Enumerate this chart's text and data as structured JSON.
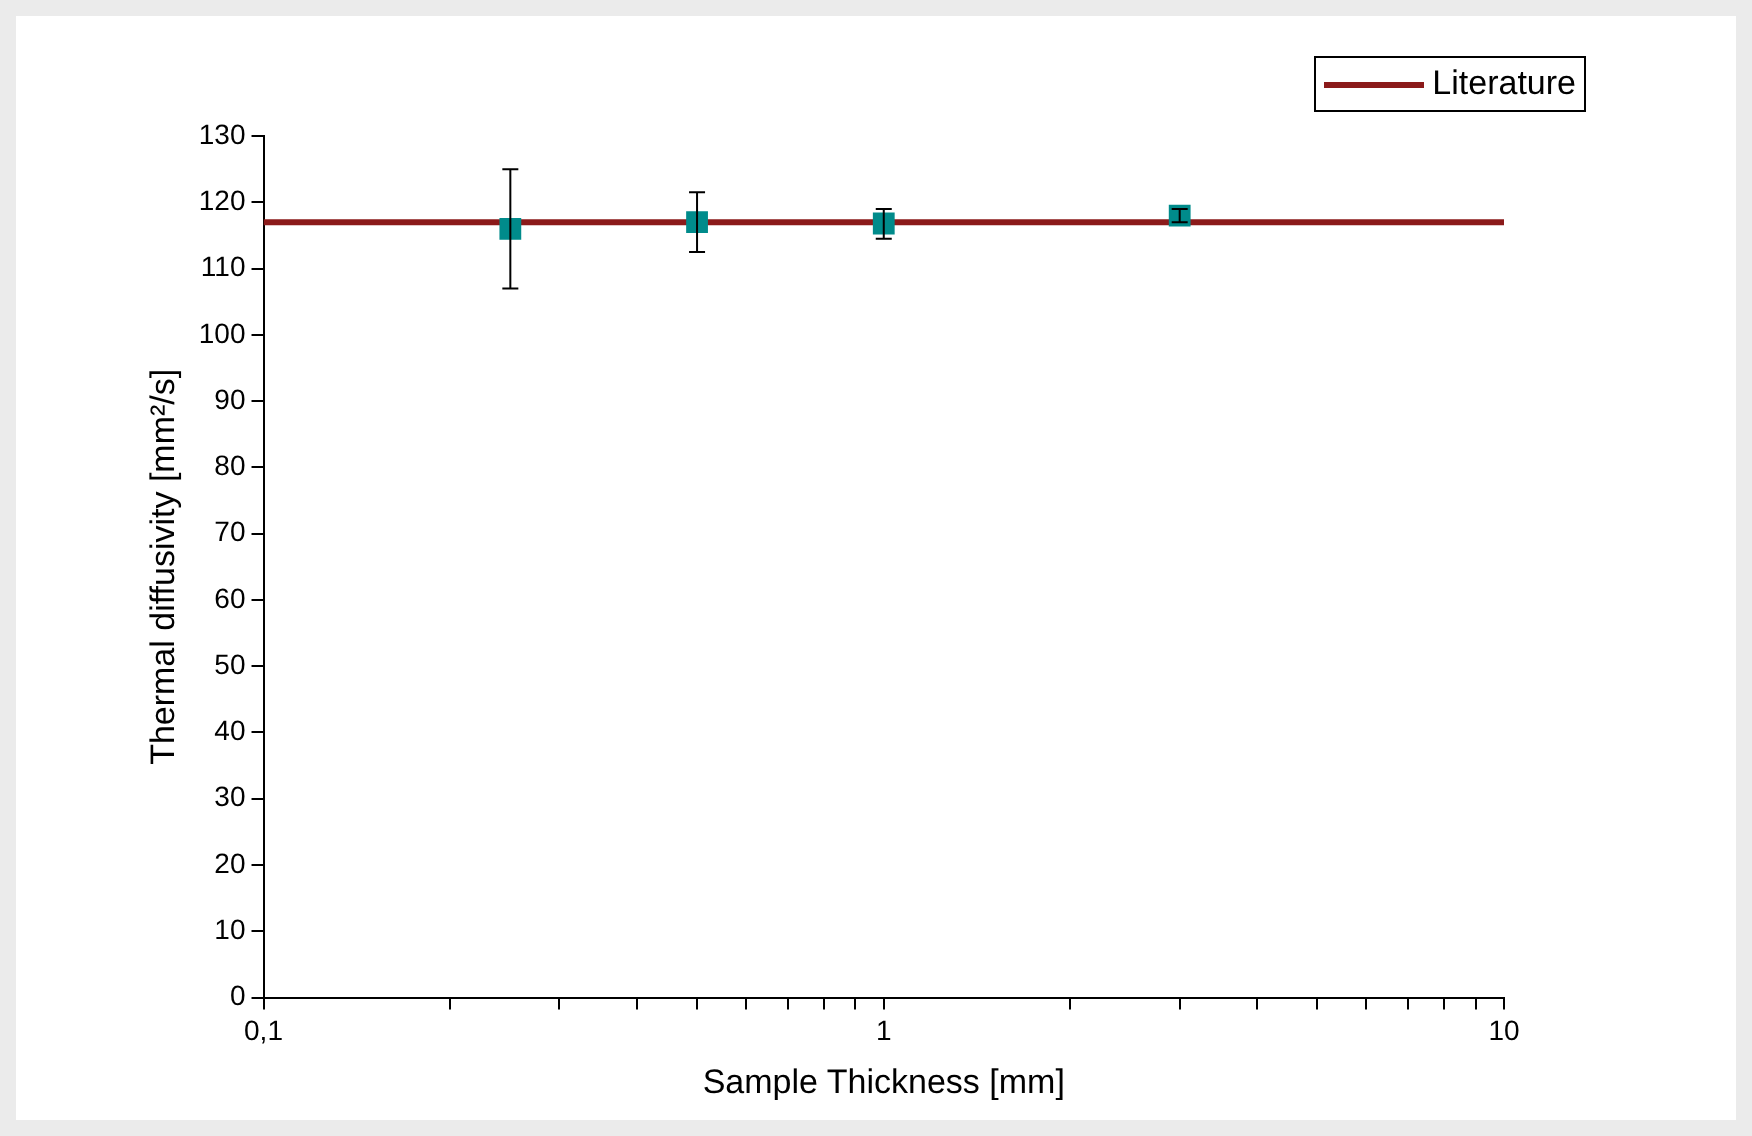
{
  "chart_data": {
    "type": "scatter",
    "xlabel": "Sample Thickness [mm]",
    "ylabel": "Thermal diffusivity [mm²/s]",
    "log": "x",
    "xlim": [
      0.1,
      10
    ],
    "ylim": [
      0,
      130
    ],
    "xticks": [
      {
        "value": 0.1,
        "label": "0,1"
      },
      {
        "value": 0.2,
        "label": null
      },
      {
        "value": 0.3,
        "label": null
      },
      {
        "value": 0.4,
        "label": null
      },
      {
        "value": 0.5,
        "label": null
      },
      {
        "value": 0.6,
        "label": null
      },
      {
        "value": 0.7,
        "label": null
      },
      {
        "value": 0.8,
        "label": null
      },
      {
        "value": 0.9,
        "label": null
      },
      1,
      {
        "value": 2,
        "label": null
      },
      {
        "value": 3,
        "label": null
      },
      {
        "value": 4,
        "label": null
      },
      {
        "value": 5,
        "label": null
      },
      {
        "value": 6,
        "label": null
      },
      {
        "value": 7,
        "label": null
      },
      {
        "value": 8,
        "label": null
      },
      {
        "value": 9,
        "label": null
      },
      10
    ],
    "yticks": [
      0,
      10,
      20,
      30,
      40,
      50,
      60,
      70,
      80,
      90,
      100,
      110,
      120,
      130
    ],
    "grid": false,
    "legend": "top right",
    "series": [
      {
        "marker": "square",
        "color": "#008b8b",
        "x": [
          0.25,
          0.5,
          1,
          3
        ],
        "values": [
          116,
          117,
          116.8,
          118
        ],
        "errors": [
          [
            107,
            125
          ],
          [
            112.5,
            121.5
          ],
          [
            114.5,
            119
          ],
          [
            117,
            119
          ]
        ]
      },
      {
        "type": "line",
        "name": "Literature",
        "color": "#8b1a1a",
        "x": [
          0.1,
          10
        ],
        "values": [
          117,
          117
        ],
        "line_style": "solid"
      }
    ]
  }
}
